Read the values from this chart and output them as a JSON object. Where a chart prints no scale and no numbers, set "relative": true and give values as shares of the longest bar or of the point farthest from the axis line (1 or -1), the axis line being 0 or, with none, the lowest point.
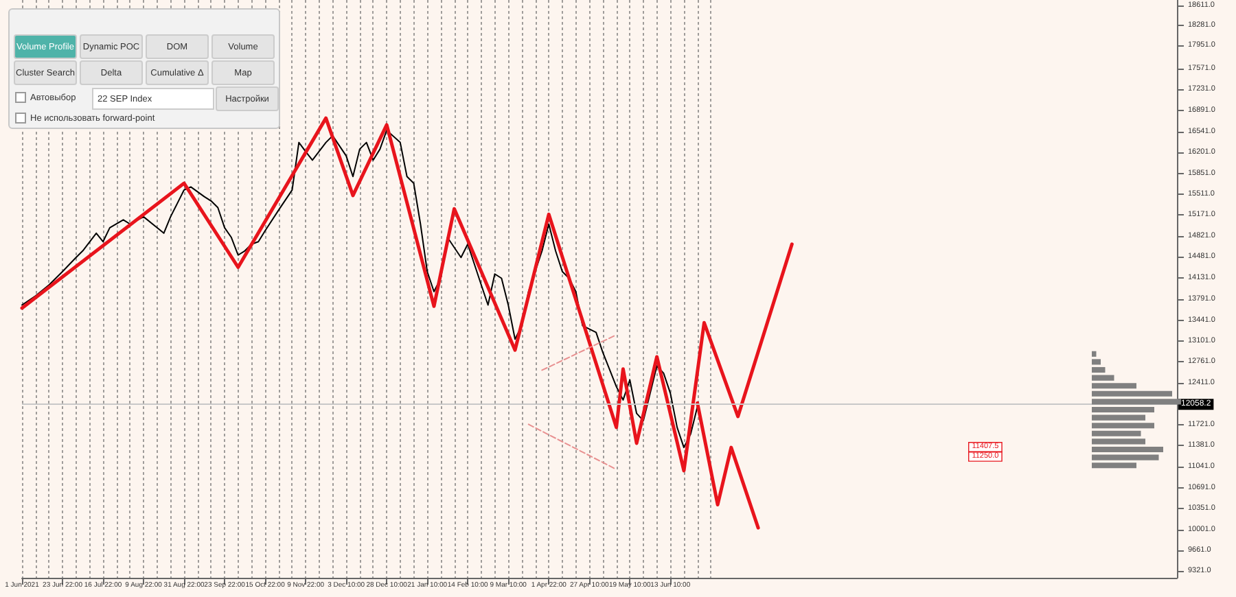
{
  "chart_data": [
    {
      "type": "line",
      "marker": "none",
      "line_style": "solid",
      "grid": "x",
      "categories": [
        "1 Jun 2021",
        null,
        null,
        null,
        null,
        null,
        "23 Jun 22:00",
        null,
        null,
        null,
        null,
        null,
        "16 Jul 22:00",
        null,
        null,
        null,
        null,
        null,
        "9 Aug 22:00",
        null,
        null,
        null,
        null,
        null,
        "31 Aug 22:00",
        null,
        null,
        null,
        null,
        null,
        "23 Sep 22:00",
        null,
        null,
        null,
        null,
        null,
        "15 Oct 22:00",
        null,
        null,
        null,
        null,
        null,
        "9 Nov 22:00",
        null,
        null,
        null,
        null,
        null,
        "3 Dec 10:00",
        null,
        null,
        null,
        null,
        null,
        "28 Dec 10:00",
        null,
        null,
        null,
        null,
        null,
        "21 Jan 10:00",
        null,
        null,
        null,
        null,
        null,
        "14 Feb 10:00",
        null,
        null,
        null,
        null,
        null,
        "9 Mar 10:00",
        null,
        null,
        null,
        null,
        null,
        "1 Apr 22:00",
        null,
        null,
        null,
        null,
        null,
        "27 Apr 10:00",
        null,
        null,
        null,
        null,
        null,
        "19 May 10:00",
        null,
        null,
        null,
        null,
        null,
        "13 Jun 10:00",
        null,
        null,
        null,
        null,
        null,
        null,
        null,
        null,
        null,
        null,
        null,
        null,
        null,
        null,
        null,
        null,
        null,
        null,
        null,
        null,
        null,
        null,
        null,
        null,
        null,
        null,
        null,
        null,
        null,
        null,
        null,
        null,
        null,
        null,
        null,
        null,
        null,
        null,
        null,
        null,
        null,
        null,
        null,
        null,
        null,
        null,
        null,
        null,
        null,
        null,
        null,
        null,
        null,
        null,
        null,
        null,
        null,
        null,
        null,
        null,
        null,
        null,
        null,
        null,
        null,
        null,
        null,
        null,
        null,
        null,
        null,
        null,
        null,
        null,
        null
      ],
      "ylim": [
        9210,
        18700
      ],
      "yticks": [
        {
          "value": 9321,
          "label": "9321.0"
        },
        {
          "value": 9661,
          "label": "9661.0"
        },
        {
          "value": 10001,
          "label": "10001.0"
        },
        {
          "value": 10351,
          "label": "10351.0"
        },
        {
          "value": 10691,
          "label": "10691.0"
        },
        {
          "value": 11041,
          "label": "11041.0"
        },
        {
          "value": 11381,
          "label": "11381.0"
        },
        {
          "value": 11721,
          "label": "11721.0"
        },
        {
          "value": 12411,
          "label": "12411.0"
        },
        {
          "value": 12761,
          "label": "12761.0"
        },
        {
          "value": 13101,
          "label": "13101.0"
        },
        {
          "value": 13441,
          "label": "13441.0"
        },
        {
          "value": 13791,
          "label": "13791.0"
        },
        {
          "value": 14131,
          "label": "14131.0"
        },
        {
          "value": 14481,
          "label": "14481.0"
        },
        {
          "value": 14821,
          "label": "14821.0"
        },
        {
          "value": 15171,
          "label": "15171.0"
        },
        {
          "value": 15511,
          "label": "15511.0"
        },
        {
          "value": 15851,
          "label": "15851.0"
        },
        {
          "value": 16201,
          "label": "16201.0"
        },
        {
          "value": 16541,
          "label": "16541.0"
        },
        {
          "value": 16891,
          "label": "16891.0"
        },
        {
          "value": 17231,
          "label": "17231.0"
        },
        {
          "value": 17571,
          "label": "17571.0"
        },
        {
          "value": 17951,
          "label": "17951.0"
        },
        {
          "value": 18281,
          "label": "18281.0"
        },
        {
          "value": 18611,
          "label": "18611.0"
        }
      ],
      "ref_lines": [
        {
          "axis": "y",
          "value": 12058.2,
          "label": "12058.2",
          "color": "#c8c8c8"
        }
      ],
      "annotations": [
        "11407.5",
        "11250.0",
        "Volume Profile",
        "Dynamic POC",
        "DOM",
        "Volume",
        "Cluster Search",
        "Delta",
        "Cumulative Δ",
        "Map",
        "Автовыбор",
        "22 SEP Index",
        "Настройки",
        "Не использовать forward-point"
      ],
      "series": [
        {
          "color": "#000000",
          "values": [
            13690,
            null,
            13840,
            null,
            14020,
            null,
            14240,
            null,
            14470,
            14580,
            null,
            14870,
            14730,
            14960,
            null,
            15090,
            15020,
            null,
            15140,
            null,
            14960,
            14870,
            15140,
            15360,
            15580,
            15630,
            null,
            15470,
            15400,
            15290,
            14960,
            14800,
            14510,
            14580,
            14690,
            14730,
            14910,
            null,
            15250,
            null,
            15580,
            16360,
            16210,
            16070,
            null,
            16360,
            16470,
            null,
            16140,
            15800,
            16250,
            16360,
            16070,
            16250,
            16560,
            null,
            16360,
            15800,
            15690,
            15020,
            14240,
            13910,
            14130,
            14800,
            null,
            14470,
            14690,
            null,
            14020,
            13690,
            14200,
            14130,
            13690,
            13130,
            13350,
            13910,
            null,
            14580,
            15020,
            14580,
            14240,
            14130,
            13910,
            13350,
            null,
            13240,
            12910,
            null,
            12350,
            12130,
            12460,
            11910,
            11790,
            12240,
            12690,
            12570,
            12240,
            11680,
            11350,
            11570,
            12020,
            null,
            null,
            null,
            null,
            null,
            null,
            null,
            null,
            null,
            null,
            null,
            null,
            null,
            null,
            null,
            null,
            null,
            null,
            null,
            null,
            null,
            null,
            null,
            null,
            null,
            null,
            null,
            null,
            null,
            null,
            null,
            null,
            null,
            null,
            null,
            null,
            null,
            null,
            null,
            null,
            null,
            null,
            null,
            null,
            null,
            null,
            null,
            null,
            null,
            null,
            null,
            null,
            null,
            null,
            null,
            null,
            null,
            null,
            null,
            null,
            null,
            null,
            null,
            null,
            null,
            null,
            null,
            null,
            null,
            null,
            null
          ]
        },
        {
          "color": "#e8141c",
          "values": [
            13640,
            null,
            null,
            null,
            null,
            null,
            null,
            null,
            null,
            null,
            null,
            null,
            null,
            null,
            null,
            null,
            null,
            null,
            null,
            null,
            null,
            null,
            null,
            null,
            15690,
            null,
            null,
            null,
            null,
            null,
            null,
            null,
            14310,
            null,
            null,
            null,
            null,
            null,
            null,
            null,
            null,
            null,
            null,
            null,
            null,
            16760,
            null,
            null,
            null,
            15490,
            null,
            null,
            null,
            null,
            16650,
            null,
            null,
            null,
            null,
            null,
            null,
            13670,
            null,
            null,
            15270,
            null,
            null,
            null,
            null,
            null,
            null,
            null,
            null,
            12950,
            null,
            null,
            null,
            null,
            15180,
            null,
            null,
            null,
            null,
            null,
            null,
            null,
            null,
            null,
            11680,
            12640,
            null,
            11420,
            null,
            null,
            12840,
            null,
            null,
            null,
            10970,
            null,
            null,
            13400,
            null,
            null,
            null,
            null,
            11860,
            null,
            null,
            null,
            null,
            null,
            null,
            null,
            14690,
            null,
            null,
            null,
            null,
            null,
            null,
            null,
            null,
            null,
            null,
            null,
            null,
            null,
            null,
            null,
            null,
            null,
            null,
            null,
            null,
            null,
            null,
            null,
            null,
            null,
            null,
            null,
            null,
            null,
            null,
            null,
            null,
            null,
            null,
            null,
            null,
            null,
            null,
            null,
            null,
            null,
            null,
            null,
            null,
            null,
            null,
            null,
            null,
            null,
            null,
            null,
            null,
            null,
            null,
            null,
            null,
            null
          ]
        },
        {
          "color": "#e8141c",
          "values": [
            null,
            null,
            null,
            null,
            null,
            null,
            null,
            null,
            null,
            null,
            null,
            null,
            null,
            null,
            null,
            null,
            null,
            null,
            null,
            null,
            null,
            null,
            null,
            null,
            null,
            null,
            null,
            null,
            null,
            null,
            null,
            null,
            null,
            null,
            null,
            null,
            null,
            null,
            null,
            null,
            null,
            null,
            null,
            null,
            null,
            null,
            null,
            null,
            null,
            null,
            null,
            null,
            null,
            null,
            null,
            null,
            null,
            null,
            null,
            null,
            null,
            null,
            null,
            null,
            null,
            null,
            null,
            null,
            null,
            null,
            null,
            null,
            null,
            null,
            null,
            null,
            null,
            null,
            null,
            null,
            null,
            null,
            null,
            null,
            null,
            null,
            null,
            null,
            null,
            null,
            null,
            null,
            null,
            null,
            null,
            null,
            null,
            null,
            null,
            null,
            12080,
            null,
            null,
            10410,
            null,
            11350,
            null,
            null,
            null,
            10030,
            null,
            null,
            null,
            null,
            null,
            null,
            null,
            null,
            null,
            null,
            null,
            null,
            null,
            null,
            null,
            null,
            null,
            null,
            null,
            null,
            null,
            null,
            null,
            null,
            null,
            null,
            null,
            null,
            null,
            null,
            null,
            null,
            null,
            null,
            null,
            null,
            null,
            null,
            null,
            null,
            null,
            null,
            null,
            null,
            null,
            null,
            null,
            null,
            null,
            null,
            null,
            null,
            null,
            null,
            null,
            null,
            null,
            null,
            null,
            null,
            null,
            null
          ]
        },
        {
          "color": "#e89090",
          "line_style": "dashed",
          "values": [
            null,
            null,
            null,
            null,
            null,
            null,
            null,
            null,
            null,
            null,
            null,
            null,
            null,
            null,
            null,
            null,
            null,
            null,
            null,
            null,
            null,
            null,
            null,
            null,
            null,
            null,
            null,
            null,
            null,
            null,
            null,
            null,
            null,
            null,
            null,
            null,
            null,
            null,
            null,
            null,
            null,
            null,
            null,
            null,
            null,
            null,
            null,
            null,
            null,
            null,
            null,
            null,
            null,
            null,
            null,
            null,
            null,
            null,
            null,
            null,
            null,
            null,
            null,
            null,
            null,
            null,
            null,
            null,
            null,
            null,
            null,
            null,
            null,
            null,
            null,
            11730,
            null,
            null,
            null,
            null,
            null,
            null,
            null,
            null,
            null,
            null,
            null,
            null,
            10990,
            null,
            null,
            null,
            null,
            null,
            null,
            null,
            null,
            null,
            null,
            null,
            null,
            null,
            null,
            null,
            null,
            null,
            null,
            null,
            null,
            null,
            null,
            null,
            null,
            null,
            null,
            null,
            null,
            null,
            null,
            null,
            null,
            null,
            null,
            null,
            null,
            null,
            null,
            null,
            null,
            null,
            null,
            null,
            null,
            null,
            null,
            null,
            null,
            null,
            null,
            null,
            null,
            null,
            null,
            null,
            null,
            null,
            null,
            null,
            null,
            null,
            null,
            null,
            null,
            null,
            null,
            null,
            null,
            null,
            null,
            null,
            null,
            null,
            null,
            null,
            null,
            null,
            null,
            null,
            null,
            null,
            null,
            null
          ]
        },
        {
          "color": "#e89090",
          "line_style": "dashed",
          "values": [
            null,
            null,
            null,
            null,
            null,
            null,
            null,
            null,
            null,
            null,
            null,
            null,
            null,
            null,
            null,
            null,
            null,
            null,
            null,
            null,
            null,
            null,
            null,
            null,
            null,
            null,
            null,
            null,
            null,
            null,
            null,
            null,
            null,
            null,
            null,
            null,
            null,
            null,
            null,
            null,
            null,
            null,
            null,
            null,
            null,
            null,
            null,
            null,
            null,
            null,
            null,
            null,
            null,
            null,
            null,
            null,
            null,
            null,
            null,
            null,
            null,
            null,
            null,
            null,
            null,
            null,
            null,
            null,
            null,
            null,
            null,
            null,
            null,
            null,
            null,
            null,
            null,
            12620,
            null,
            null,
            null,
            null,
            null,
            null,
            null,
            null,
            null,
            null,
            13200,
            null,
            null,
            null,
            null,
            null,
            null,
            null,
            null,
            null,
            null,
            null,
            null,
            null,
            null,
            null,
            null,
            null,
            null,
            null,
            null,
            null,
            null,
            null,
            null,
            null,
            null,
            null,
            null,
            null,
            null,
            null,
            null,
            null,
            null,
            null,
            null,
            null,
            null,
            null,
            null,
            null,
            null,
            null,
            null,
            null,
            null,
            null,
            null,
            null,
            null,
            null,
            null,
            null,
            null,
            null,
            null,
            null,
            null,
            null,
            null,
            null,
            null,
            null,
            null,
            null,
            null,
            null,
            null,
            null,
            null,
            null,
            null,
            null,
            null,
            null,
            null,
            null,
            null,
            null,
            null,
            null,
            null,
            null
          ]
        }
      ]
    },
    {
      "type": "bar",
      "orientation": "horizontal",
      "relative": true,
      "color": "#808080",
      "categories": [
        null,
        null,
        null,
        null,
        null,
        null,
        null,
        null,
        null,
        null,
        null,
        null,
        null,
        null,
        null
      ],
      "values": [
        0.05,
        0.1,
        0.15,
        0.25,
        0.5,
        0.9,
        1,
        0.7,
        0.6,
        0.7,
        0.55,
        0.6,
        0.8,
        0.75,
        0.5
      ]
    }
  ]
}
